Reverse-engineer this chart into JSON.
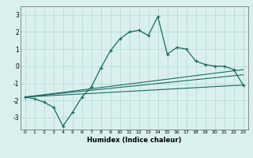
{
  "xlabel": "Humidex (Indice chaleur)",
  "ylabel": "",
  "background_color": "#d9f0ef",
  "grid_color": "#b8dbd8",
  "line_color": "#1a6b60",
  "xlim": [
    -0.5,
    23.5
  ],
  "ylim": [
    -3.7,
    3.5
  ],
  "x_ticks": [
    0,
    1,
    2,
    3,
    4,
    5,
    6,
    7,
    8,
    9,
    10,
    11,
    12,
    13,
    14,
    15,
    16,
    17,
    18,
    19,
    20,
    21,
    22,
    23
  ],
  "y_ticks": [
    -3,
    -2,
    -1,
    0,
    1,
    2,
    3
  ],
  "main_x": [
    0,
    1,
    2,
    3,
    4,
    5,
    6,
    7,
    8,
    9,
    10,
    11,
    12,
    13,
    14,
    15,
    16,
    17,
    18,
    19,
    20,
    21,
    22,
    23
  ],
  "main_y": [
    -1.8,
    -1.9,
    -2.1,
    -2.4,
    -3.5,
    -2.7,
    -1.8,
    -1.2,
    -0.1,
    0.9,
    1.6,
    2.0,
    2.1,
    1.8,
    2.9,
    0.7,
    1.1,
    1.0,
    0.3,
    0.1,
    0.0,
    0.0,
    -0.2,
    -1.1
  ],
  "line2_x": [
    0,
    23
  ],
  "line2_y": [
    -1.8,
    -1.1
  ],
  "line3_x": [
    0,
    23
  ],
  "line3_y": [
    -1.8,
    -0.5
  ],
  "line4_x": [
    0,
    23
  ],
  "line4_y": [
    -1.8,
    -0.2
  ]
}
